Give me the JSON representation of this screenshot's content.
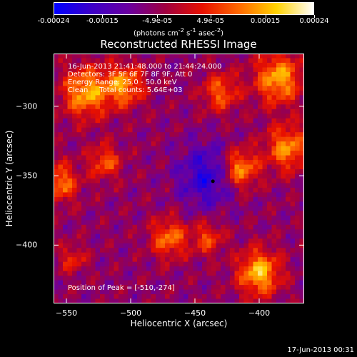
{
  "colorbar": {
    "ticks": [
      "-0.00024",
      "-0.00015",
      "-4.9e-05",
      "4.9e-05",
      "0.00015",
      "0.00024"
    ],
    "tick_values": [
      -0.00024,
      -0.00015,
      -4.9e-05,
      4.9e-05,
      0.00015,
      0.00024
    ],
    "range": [
      -0.00024,
      0.00024
    ],
    "units_html": "(photons cm<sup>-2</sup> s<sup>-1</sup> asec<sup>-2</sup>)",
    "colors": [
      "#0000ff",
      "#3c00c8",
      "#6a00a0",
      "#a00040",
      "#e81000",
      "#ff6a00",
      "#ffd200",
      "#ffffff"
    ]
  },
  "chart_data": {
    "type": "heatmap",
    "title": "Reconstructed RHESSI Image",
    "xlabel": "Heliocentric X (arcsec)",
    "ylabel": "Heliocentric Y (arcsec)",
    "xlim": [
      -560,
      -365
    ],
    "ylim": [
      -442,
      -262
    ],
    "xticks": [
      -550,
      -500,
      -450,
      -400
    ],
    "yticks": [
      -300,
      -350,
      -400
    ],
    "annotations": [
      "16-Jun-2013 21:41:48.000 to 21:44:24.000",
      "Detectors: 3F 5F 6F 7F 8F 9F, Att 0",
      "Energy Range: 25.0 - 50.0 keV",
      "Clean     Total counts: 5.64E+03"
    ],
    "peak_label": "Position of Peak = [-510,-274]",
    "marker": {
      "x": -436,
      "y": -354
    },
    "grid": false,
    "legend": "colorbar-top"
  },
  "timestamp": "17-Jun-2013 00:31"
}
